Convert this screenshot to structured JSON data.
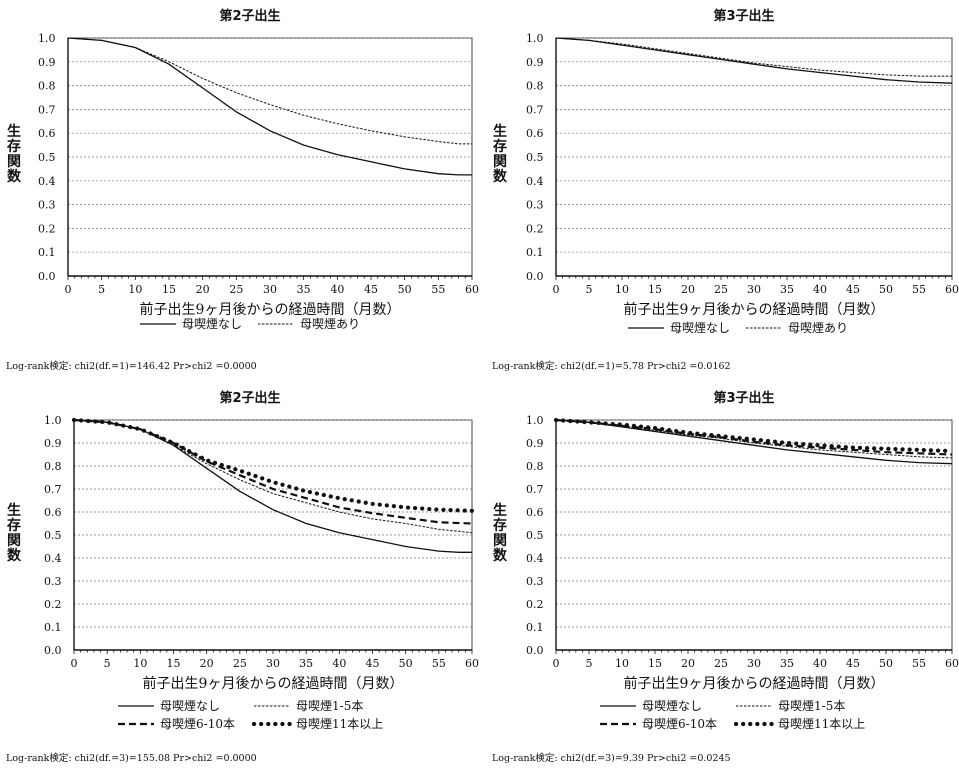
{
  "chart_data": [
    {
      "type": "line",
      "title": "第2子出生",
      "xlabel": "前子出生9ヶ月後からの経過時間（月数）",
      "ylabel": "生存関数",
      "xlim": [
        0,
        60
      ],
      "ylim": [
        0,
        1
      ],
      "xticks": [
        0,
        5,
        10,
        15,
        20,
        25,
        30,
        35,
        40,
        45,
        50,
        55,
        60
      ],
      "yticks": [
        0.0,
        0.1,
        0.2,
        0.3,
        0.4,
        0.5,
        0.6,
        0.7,
        0.8,
        0.9,
        1.0
      ],
      "grid": true,
      "legend_position": "bottom",
      "note": "Log-rank検定: chi2(df.=1)=146.42 Pr>chi2 =0.0000",
      "series": [
        {
          "name": "母喫煙なし",
          "style": "solid",
          "x": [
            0,
            5,
            10,
            15,
            20,
            25,
            30,
            35,
            40,
            45,
            50,
            55,
            58,
            60
          ],
          "y": [
            1.0,
            0.99,
            0.96,
            0.89,
            0.79,
            0.69,
            0.61,
            0.55,
            0.51,
            0.48,
            0.45,
            0.43,
            0.425,
            0.425
          ]
        },
        {
          "name": "母喫煙あり",
          "style": "thin-dash",
          "x": [
            0,
            5,
            10,
            15,
            20,
            25,
            30,
            35,
            40,
            45,
            50,
            55,
            58,
            60
          ],
          "y": [
            1.0,
            0.99,
            0.96,
            0.9,
            0.83,
            0.77,
            0.72,
            0.675,
            0.64,
            0.61,
            0.585,
            0.565,
            0.555,
            0.555
          ]
        }
      ]
    },
    {
      "type": "line",
      "title": "第3子出生",
      "xlabel": "前子出生9ヶ月後からの経過時間（月数）",
      "ylabel": "生存関数",
      "xlim": [
        0,
        60
      ],
      "ylim": [
        0,
        1
      ],
      "xticks": [
        0,
        5,
        10,
        15,
        20,
        25,
        30,
        35,
        40,
        45,
        50,
        55,
        60
      ],
      "yticks": [
        0.0,
        0.1,
        0.2,
        0.3,
        0.4,
        0.5,
        0.6,
        0.7,
        0.8,
        0.9,
        1.0
      ],
      "grid": true,
      "legend_position": "bottom",
      "note": "Log-rank検定: chi2(df.=1)=5.78 Pr>chi2 =0.0162",
      "series": [
        {
          "name": "母喫煙なし",
          "style": "solid",
          "x": [
            0,
            5,
            10,
            15,
            20,
            25,
            30,
            35,
            40,
            45,
            50,
            55,
            60
          ],
          "y": [
            1.0,
            0.99,
            0.97,
            0.95,
            0.93,
            0.91,
            0.89,
            0.87,
            0.855,
            0.84,
            0.825,
            0.815,
            0.81
          ]
        },
        {
          "name": "母喫煙あり",
          "style": "thin-dash",
          "x": [
            0,
            5,
            10,
            15,
            20,
            25,
            30,
            35,
            40,
            45,
            50,
            55,
            60
          ],
          "y": [
            1.0,
            0.99,
            0.975,
            0.955,
            0.935,
            0.915,
            0.895,
            0.88,
            0.865,
            0.855,
            0.845,
            0.84,
            0.84
          ]
        }
      ]
    },
    {
      "type": "line",
      "title": "第2子出生",
      "xlabel": "前子出生9ヶ月後からの経過時間（月数）",
      "ylabel": "生存関数",
      "xlim": [
        0,
        60
      ],
      "ylim": [
        0,
        1
      ],
      "xticks": [
        0,
        5,
        10,
        15,
        20,
        25,
        30,
        35,
        40,
        45,
        50,
        55,
        60
      ],
      "yticks": [
        0.0,
        0.1,
        0.2,
        0.3,
        0.4,
        0.5,
        0.6,
        0.7,
        0.8,
        0.9,
        1.0
      ],
      "grid": true,
      "legend_position": "bottom",
      "note": "Log-rank検定: chi2(df.=3)=155.08 Pr>chi2 =0.0000",
      "series": [
        {
          "name": "母喫煙なし",
          "style": "solid",
          "x": [
            0,
            5,
            10,
            15,
            20,
            25,
            30,
            35,
            40,
            45,
            50,
            55,
            58,
            60
          ],
          "y": [
            1.0,
            0.99,
            0.96,
            0.89,
            0.79,
            0.69,
            0.61,
            0.55,
            0.51,
            0.48,
            0.45,
            0.43,
            0.425,
            0.425
          ]
        },
        {
          "name": "母喫煙1-5本",
          "style": "thin-dash",
          "x": [
            0,
            5,
            10,
            15,
            20,
            25,
            30,
            35,
            40,
            45,
            50,
            55,
            60
          ],
          "y": [
            1.0,
            0.99,
            0.96,
            0.89,
            0.81,
            0.74,
            0.68,
            0.64,
            0.6,
            0.57,
            0.55,
            0.525,
            0.51
          ]
        },
        {
          "name": "母喫煙6-10本",
          "style": "thick-dash",
          "x": [
            0,
            5,
            10,
            15,
            20,
            25,
            30,
            35,
            40,
            45,
            50,
            55,
            60
          ],
          "y": [
            1.0,
            0.99,
            0.96,
            0.9,
            0.82,
            0.76,
            0.7,
            0.66,
            0.62,
            0.595,
            0.575,
            0.555,
            0.55
          ]
        },
        {
          "name": "母喫煙11本以上",
          "style": "dots",
          "x": [
            0,
            5,
            10,
            15,
            20,
            25,
            30,
            35,
            40,
            45,
            50,
            55,
            60
          ],
          "y": [
            1.0,
            0.99,
            0.96,
            0.9,
            0.825,
            0.78,
            0.73,
            0.69,
            0.66,
            0.635,
            0.62,
            0.61,
            0.605
          ]
        }
      ]
    },
    {
      "type": "line",
      "title": "第3子出生",
      "xlabel": "前子出生9ヶ月後からの経過時間（月数）",
      "ylabel": "生存関数",
      "xlim": [
        0,
        60
      ],
      "ylim": [
        0,
        1
      ],
      "xticks": [
        0,
        5,
        10,
        15,
        20,
        25,
        30,
        35,
        40,
        45,
        50,
        55,
        60
      ],
      "yticks": [
        0.0,
        0.1,
        0.2,
        0.3,
        0.4,
        0.5,
        0.6,
        0.7,
        0.8,
        0.9,
        1.0
      ],
      "grid": true,
      "legend_position": "bottom",
      "note": "Log-rank検定: chi2(df.=3)=9.39 Pr>chi2 =0.0245",
      "series": [
        {
          "name": "母喫煙なし",
          "style": "solid",
          "x": [
            0,
            5,
            10,
            15,
            20,
            25,
            30,
            35,
            40,
            45,
            50,
            55,
            60
          ],
          "y": [
            1.0,
            0.99,
            0.97,
            0.95,
            0.93,
            0.91,
            0.89,
            0.87,
            0.855,
            0.84,
            0.825,
            0.815,
            0.81
          ]
        },
        {
          "name": "母喫煙1-5本",
          "style": "thin-dash",
          "x": [
            0,
            5,
            10,
            15,
            20,
            25,
            30,
            35,
            40,
            45,
            50,
            55,
            60
          ],
          "y": [
            1.0,
            0.99,
            0.975,
            0.955,
            0.935,
            0.92,
            0.9,
            0.885,
            0.87,
            0.86,
            0.85,
            0.84,
            0.835
          ]
        },
        {
          "name": "母喫煙6-10本",
          "style": "thick-dash",
          "x": [
            0,
            5,
            10,
            15,
            20,
            25,
            30,
            35,
            40,
            45,
            50,
            55,
            60
          ],
          "y": [
            1.0,
            0.99,
            0.975,
            0.96,
            0.94,
            0.925,
            0.905,
            0.89,
            0.88,
            0.87,
            0.86,
            0.855,
            0.85
          ]
        },
        {
          "name": "母喫煙11本以上",
          "style": "dots",
          "x": [
            0,
            5,
            10,
            15,
            20,
            25,
            30,
            35,
            40,
            45,
            50,
            55,
            60
          ],
          "y": [
            1.0,
            0.99,
            0.98,
            0.965,
            0.945,
            0.93,
            0.915,
            0.9,
            0.89,
            0.88,
            0.875,
            0.87,
            0.865
          ]
        }
      ]
    }
  ]
}
